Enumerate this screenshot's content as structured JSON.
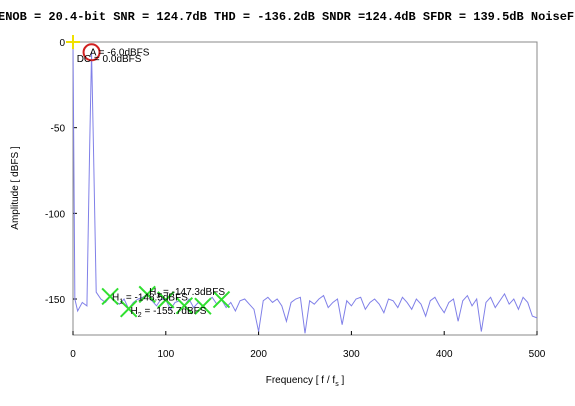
{
  "chart_data": {
    "type": "line",
    "title": "ENOB = 20.4-bit SNR = 124.7dB THD = -136.2dB SNDR =124.4dB SFDR = 139.5dB NoiseF",
    "ylabel": "Amplitude [ dBFS ]",
    "xlabel": {
      "main": "Frequency [ f / f",
      "sub": "s",
      "tail": " ]"
    },
    "xlim": [
      0,
      500
    ],
    "xticks": [
      0,
      100,
      200,
      300,
      400,
      500
    ],
    "ylim": [
      -171,
      0
    ],
    "yticks": [
      0,
      -50,
      -100,
      -150
    ],
    "grid": false,
    "series": [
      {
        "color": "#8080e8",
        "x": [
          0,
          2,
          5,
          10,
          15,
          18,
          20,
          22,
          25,
          30,
          35,
          40,
          45,
          50,
          55,
          60,
          65,
          70,
          75,
          80,
          85,
          90,
          95,
          100,
          105,
          110,
          115,
          120,
          125,
          130,
          135,
          140,
          145,
          150,
          155,
          160,
          165,
          170,
          175,
          180,
          185,
          190,
          195,
          200,
          205,
          210,
          215,
          220,
          225,
          230,
          235,
          240,
          245,
          250,
          255,
          260,
          265,
          270,
          275,
          280,
          285,
          290,
          295,
          300,
          305,
          310,
          315,
          320,
          325,
          330,
          335,
          340,
          345,
          350,
          355,
          360,
          365,
          370,
          375,
          380,
          385,
          390,
          395,
          400,
          405,
          410,
          415,
          420,
          425,
          430,
          435,
          440,
          445,
          450,
          455,
          460,
          465,
          470,
          475,
          480,
          485,
          490,
          495,
          500
        ],
        "values": [
          0,
          -150,
          -157,
          -152,
          -154,
          -60,
          -6,
          -60,
          -146,
          -150,
          -152,
          -148.5,
          -151,
          -153,
          -150,
          -155.7,
          -152,
          -150,
          -149,
          -147.3,
          -151,
          -154,
          -150,
          -150.5,
          -156,
          -152,
          -151,
          -153.9,
          -150,
          -155,
          -152,
          -154.2,
          -151,
          -149,
          -153,
          -150.3,
          -155,
          -152,
          -157,
          -151,
          -150,
          -153,
          -156,
          -169,
          -151,
          -149,
          -152,
          -150,
          -154,
          -163,
          -152,
          -150,
          -149,
          -170,
          -151,
          -153,
          -150,
          -148,
          -155,
          -152,
          -150,
          -165,
          -151,
          -154,
          -150,
          -149,
          -156,
          -152,
          -150,
          -153,
          -158,
          -150,
          -151,
          -155,
          -149,
          -152,
          -156,
          -150,
          -153,
          -160,
          -151,
          -149,
          -154,
          -158,
          -152,
          -150,
          -163,
          -151,
          -148,
          -154,
          -150,
          -169,
          -152,
          -149,
          -155,
          -151,
          -147,
          -153,
          -150,
          -156,
          -149,
          -152,
          -160,
          -161
        ]
      }
    ],
    "dc_marker": {
      "x": 0,
      "y": 0,
      "color": "#f0e000"
    },
    "fundamental_marker": {
      "x": 20,
      "y": -6,
      "color": "#d02020"
    },
    "harmonics": {
      "color": "#30e030",
      "x": [
        40,
        60,
        80,
        100,
        120,
        140,
        160
      ],
      "values": [
        -148.5,
        -155.7,
        -147.3,
        -150.5,
        -153.9,
        -154.2,
        -150.3
      ]
    },
    "annotations": [
      {
        "pre": "A = -6.0dBFS",
        "sub": "",
        "post": "",
        "x": 18,
        "y": -6
      },
      {
        "pre": "DC = 0.0dBFS",
        "sub": "",
        "post": "",
        "x": 4,
        "y": -10
      },
      {
        "pre": "H",
        "sub": "1",
        "post": " = -148.5dBFS",
        "x": 42,
        "y": -149
      },
      {
        "pre": "H",
        "sub": "2",
        "post": " = -155.7dBFS",
        "x": 62,
        "y": -157
      },
      {
        "pre": "H",
        "sub": "3",
        "post": " = -147.3dBFS",
        "x": 82,
        "y": -146
      }
    ]
  }
}
